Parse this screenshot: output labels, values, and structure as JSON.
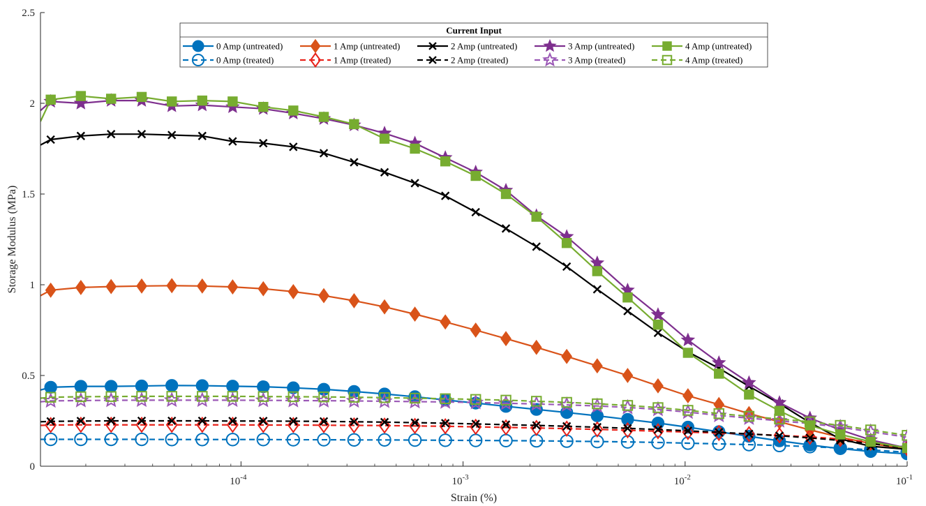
{
  "chart_data": {
    "type": "line",
    "xlabel": "Strain (%)",
    "ylabel": "Storage Modulus (MPa)",
    "x_scale": "log",
    "xlim": [
      1.25e-05,
      0.1
    ],
    "ylim": [
      0,
      2.5
    ],
    "y_ticks": [
      0,
      0.5,
      1,
      1.5,
      2,
      2.5
    ],
    "y_tick_labels": [
      "0",
      "0.5",
      "1",
      "1.5",
      "2",
      "2.5"
    ],
    "x_ticks": [
      0.0001,
      0.001,
      0.01,
      0.1
    ],
    "x_tick_labels": [
      {
        "base": "10",
        "exp": "-4"
      },
      {
        "base": "10",
        "exp": "-3"
      },
      {
        "base": "10",
        "exp": "-2"
      },
      {
        "base": "10",
        "exp": "-1"
      }
    ],
    "grid": false,
    "legend": {
      "title": "Current Input",
      "placement": "top-center",
      "columns": 5
    },
    "x": [
      1.25e-05,
      1.39e-05,
      1.9e-05,
      2.6e-05,
      3.57e-05,
      4.88e-05,
      6.69e-05,
      9.17e-05,
      0.000126,
      0.000172,
      0.000236,
      0.000323,
      0.000443,
      0.000607,
      0.000832,
      0.00114,
      0.00156,
      0.00214,
      0.00293,
      0.00402,
      0.00551,
      0.00755,
      0.0103,
      0.0142,
      0.0194,
      0.0266,
      0.0365,
      0.05,
      0.0685,
      0.1
    ],
    "series": [
      {
        "name": "0 Amp (untreated)",
        "color": "#0072BD",
        "style": "solid",
        "marker": "circle-filled",
        "values": [
          0.42,
          0.435,
          0.44,
          0.44,
          0.442,
          0.445,
          0.444,
          0.441,
          0.438,
          0.432,
          0.424,
          0.412,
          0.398,
          0.383,
          0.365,
          0.348,
          0.33,
          0.313,
          0.296,
          0.278,
          0.258,
          0.238,
          0.215,
          0.19,
          0.165,
          0.14,
          0.117,
          0.097,
          0.081,
          0.068
        ]
      },
      {
        "name": "0 Amp (treated)",
        "color": "#0072BD",
        "style": "dashed",
        "marker": "circle-open",
        "values": [
          0.148,
          0.148,
          0.148,
          0.148,
          0.148,
          0.147,
          0.147,
          0.147,
          0.147,
          0.146,
          0.146,
          0.145,
          0.145,
          0.144,
          0.143,
          0.142,
          0.141,
          0.14,
          0.138,
          0.136,
          0.134,
          0.131,
          0.127,
          0.123,
          0.119,
          0.114,
          0.108,
          0.1,
          0.09,
          0.077
        ]
      },
      {
        "name": "1 Amp (untreated)",
        "color": "#D95319",
        "style": "solid",
        "marker": "diamond-filled",
        "values": [
          0.94,
          0.97,
          0.985,
          0.99,
          0.993,
          0.995,
          0.993,
          0.988,
          0.978,
          0.962,
          0.94,
          0.912,
          0.878,
          0.838,
          0.795,
          0.75,
          0.703,
          0.655,
          0.605,
          0.553,
          0.5,
          0.443,
          0.388,
          0.34,
          0.29,
          0.245,
          0.2,
          0.16,
          0.125,
          0.095
        ]
      },
      {
        "name": "1 Amp (treated)",
        "color": "#E8231B",
        "style": "dashed",
        "marker": "diamond-open",
        "values": [
          0.225,
          0.227,
          0.228,
          0.228,
          0.228,
          0.228,
          0.228,
          0.228,
          0.227,
          0.227,
          0.226,
          0.225,
          0.224,
          0.222,
          0.22,
          0.217,
          0.214,
          0.211,
          0.207,
          0.203,
          0.198,
          0.193,
          0.188,
          0.183,
          0.177,
          0.17,
          0.162,
          0.15,
          0.133,
          0.1
        ]
      },
      {
        "name": "2 Amp (untreated)",
        "color": "#000000",
        "style": "solid",
        "marker": "x",
        "values": [
          1.77,
          1.8,
          1.82,
          1.83,
          1.83,
          1.825,
          1.82,
          1.79,
          1.78,
          1.76,
          1.725,
          1.675,
          1.62,
          1.56,
          1.49,
          1.4,
          1.31,
          1.21,
          1.1,
          0.975,
          0.855,
          0.735,
          0.63,
          0.54,
          0.44,
          0.345,
          0.24,
          0.15,
          0.11,
          0.093
        ]
      },
      {
        "name": "2 Amp (treated)",
        "color": "#000000",
        "style": "dashed",
        "marker": "x",
        "values": [
          0.245,
          0.247,
          0.249,
          0.25,
          0.25,
          0.25,
          0.25,
          0.249,
          0.249,
          0.248,
          0.247,
          0.245,
          0.243,
          0.24,
          0.237,
          0.233,
          0.229,
          0.225,
          0.22,
          0.215,
          0.209,
          0.202,
          0.195,
          0.187,
          0.178,
          0.168,
          0.156,
          0.142,
          0.125,
          0.1
        ]
      },
      {
        "name": "3 Amp (untreated)",
        "color": "#7E2F8E",
        "style": "solid",
        "marker": "star-filled",
        "values": [
          1.96,
          2.01,
          2.0,
          2.015,
          2.015,
          1.985,
          1.99,
          1.98,
          1.97,
          1.945,
          1.915,
          1.88,
          1.835,
          1.78,
          1.7,
          1.62,
          1.52,
          1.38,
          1.265,
          1.12,
          0.97,
          0.835,
          0.695,
          0.57,
          0.46,
          0.35,
          0.265,
          0.2,
          0.145,
          0.1
        ]
      },
      {
        "name": "3 Amp (treated)",
        "color": "#9B59B6",
        "style": "dashed",
        "marker": "star-open",
        "values": [
          0.355,
          0.36,
          0.362,
          0.363,
          0.364,
          0.364,
          0.364,
          0.364,
          0.363,
          0.362,
          0.361,
          0.36,
          0.358,
          0.356,
          0.354,
          0.351,
          0.347,
          0.343,
          0.338,
          0.332,
          0.324,
          0.313,
          0.298,
          0.28,
          0.265,
          0.25,
          0.235,
          0.215,
          0.19,
          0.16
        ]
      },
      {
        "name": "4 Amp (untreated)",
        "color": "#77AC30",
        "style": "solid",
        "marker": "square-filled",
        "values": [
          1.9,
          2.02,
          2.04,
          2.025,
          2.035,
          2.01,
          2.015,
          2.01,
          1.98,
          1.96,
          1.925,
          1.885,
          1.805,
          1.75,
          1.68,
          1.6,
          1.5,
          1.375,
          1.23,
          1.075,
          0.93,
          0.78,
          0.625,
          0.51,
          0.395,
          0.305,
          0.225,
          0.175,
          0.135,
          0.1
        ]
      },
      {
        "name": "4 Amp (treated)",
        "color": "#77AC30",
        "style": "dashed",
        "marker": "square-open",
        "values": [
          0.375,
          0.38,
          0.383,
          0.384,
          0.385,
          0.385,
          0.385,
          0.385,
          0.384,
          0.383,
          0.382,
          0.38,
          0.378,
          0.375,
          0.372,
          0.368,
          0.364,
          0.358,
          0.352,
          0.344,
          0.335,
          0.323,
          0.308,
          0.29,
          0.275,
          0.26,
          0.245,
          0.225,
          0.2,
          0.17
        ]
      }
    ]
  }
}
